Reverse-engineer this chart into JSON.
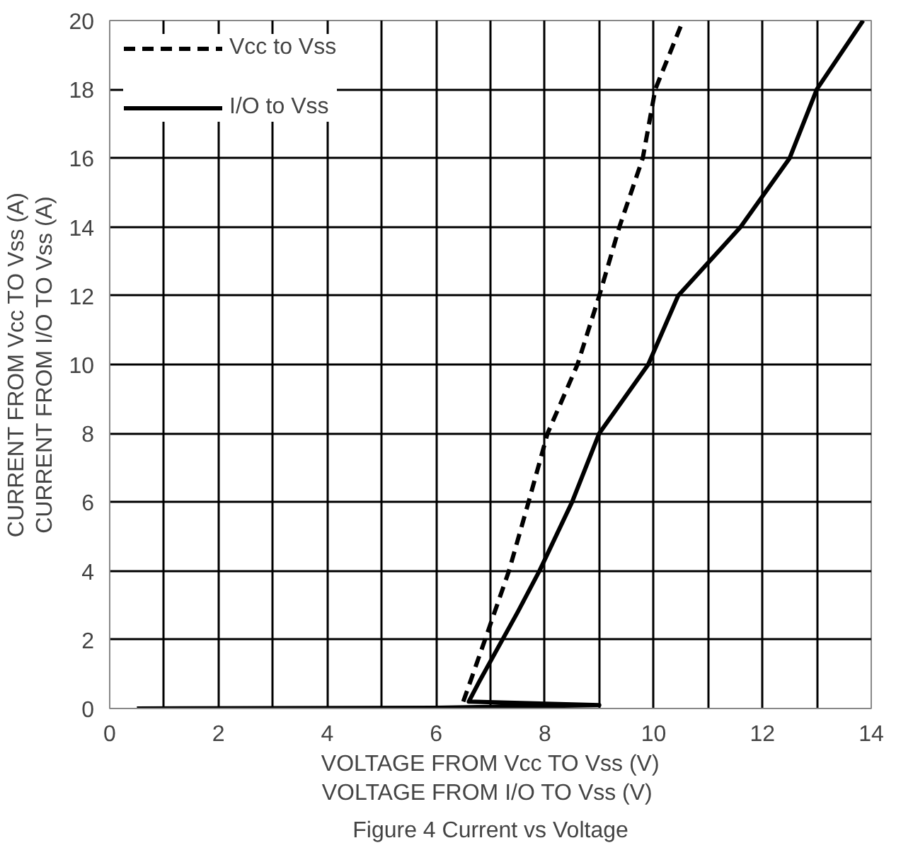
{
  "chart_data": {
    "type": "line",
    "xlabel": "VOLTAGE FROM Vcc TO Vss (V)\nVOLTAGE FROM  I/O TO Vss (V)",
    "ylabel": "CURRENT FROM Vcc TO Vss (A)\nCURRENT FROM I/O TO Vss (A)",
    "annotations": [
      "Figure 4 Current vs Voltage"
    ],
    "series": [
      {
        "name": "Vcc to Vss",
        "color": "#000000",
        "line_style": "dashed",
        "x": [
          6.5,
          6.9,
          7.34,
          7.7,
          8.05,
          8.6,
          9.0,
          9.37,
          9.8,
          10.03,
          10.54
        ],
        "values": [
          0.2,
          2,
          4,
          6,
          8,
          10,
          12,
          14,
          16,
          18,
          20
        ]
      },
      {
        "name": "I/O to Vss",
        "color": "#000000",
        "line_style": "solid",
        "x": [
          0.5,
          6.0,
          9.0,
          6.6,
          6.8,
          7.5,
          7.9,
          8.5,
          9.0,
          9.9,
          10.45,
          11.6,
          12.5,
          13.0,
          13.85
        ],
        "values": [
          0,
          0.02,
          0.1,
          0.2,
          0.8,
          2.8,
          4,
          6,
          8,
          10,
          12,
          14,
          16,
          18,
          20
        ]
      }
    ],
    "xlim": [
      0,
      14
    ],
    "ylim": [
      0,
      20
    ],
    "xticks": [
      0,
      {
        "value": 1,
        "label": null
      },
      2,
      {
        "value": 3,
        "label": null
      },
      4,
      {
        "value": 5,
        "label": null
      },
      6,
      {
        "value": 7,
        "label": null
      },
      8,
      {
        "value": 9,
        "label": null
      },
      10,
      {
        "value": 11,
        "label": null
      },
      12,
      {
        "value": 13,
        "label": null
      },
      14
    ],
    "yticks": [
      0,
      2,
      4,
      6,
      8,
      10,
      12,
      14,
      16,
      18,
      20
    ],
    "grid": true,
    "legend": "top left",
    "marker": "none"
  }
}
